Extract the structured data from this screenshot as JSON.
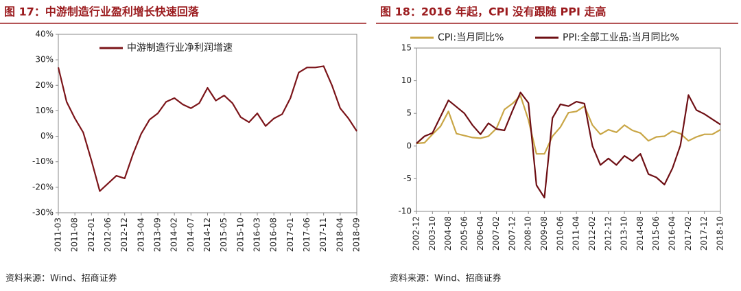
{
  "chart_data": [
    {
      "type": "line",
      "title": "图 17：中游制造行业盈利增长快速回落",
      "source": "资料来源：Wind、招商证券",
      "categories": [
        "2011-03",
        null,
        "2011-08",
        null,
        "2012-01",
        null,
        "2012-06",
        null,
        "2012-12",
        null,
        "2013-04",
        null,
        "2013-09",
        null,
        "2014-02",
        null,
        "2014-07",
        null,
        "2014-12",
        null,
        "2015-05",
        null,
        "2015-10",
        null,
        "2016-03",
        null,
        "2016-08",
        null,
        "2017-01",
        null,
        "2017-06",
        null,
        "2017-11",
        null,
        "2018-04",
        null,
        "2018-09"
      ],
      "series": [
        {
          "name": "中游制造行业净利润增速",
          "color": "#7b1419",
          "values": [
            27,
            13.5,
            7,
            1.5,
            -9.5,
            -21.5,
            -18.5,
            -15.5,
            -16.5,
            -7,
            1,
            6.5,
            9,
            13.5,
            15,
            12.5,
            11,
            13,
            19,
            14,
            16,
            13,
            7.5,
            5.5,
            9,
            4,
            7,
            8.7,
            15,
            25,
            27,
            27,
            27.5,
            20,
            11,
            7,
            2
          ]
        }
      ],
      "ylim": [
        -30,
        40
      ],
      "yticks": [
        {
          "value": -30,
          "label": "-30%"
        },
        {
          "value": -20,
          "label": "-20%"
        },
        {
          "value": -10,
          "label": "-10%"
        },
        {
          "value": 0,
          "label": "0%"
        },
        {
          "value": 10,
          "label": "10%"
        },
        {
          "value": 20,
          "label": "20%"
        },
        {
          "value": 30,
          "label": "30%"
        },
        {
          "value": 40,
          "label": "40%"
        }
      ]
    },
    {
      "type": "line",
      "title": "图 18：2016 年起，CPI 没有跟随 PPI 走高",
      "source": "资料来源：Wind、招商证券",
      "categories": [
        "2002-12",
        null,
        "2003-10",
        null,
        "2004-08",
        null,
        "2005-06",
        null,
        "2006-04",
        null,
        "2007-02",
        null,
        "2007-12",
        null,
        "2008-10",
        null,
        "2009-08",
        null,
        "2010-06",
        null,
        "2011-04",
        null,
        "2012-02",
        null,
        "2012-12",
        null,
        "2013-10",
        null,
        "2014-08",
        null,
        "2015-06",
        null,
        "2016-04",
        null,
        "2017-02",
        null,
        "2017-12",
        null,
        "2018-10"
      ],
      "series": [
        {
          "name": "CPI:当月同比%",
          "color": "#c9a646",
          "values": [
            0.4,
            0.5,
            1.8,
            3.0,
            5.3,
            1.9,
            1.6,
            1.3,
            1.2,
            1.5,
            2.7,
            5.6,
            6.5,
            7.7,
            4.0,
            -1.2,
            -1.2,
            1.5,
            2.9,
            5.1,
            5.3,
            6.1,
            3.2,
            1.8,
            2.5,
            2.1,
            3.2,
            2.4,
            2.0,
            0.8,
            1.4,
            1.5,
            2.3,
            1.9,
            0.8,
            1.4,
            1.8,
            1.8,
            2.5
          ]
        },
        {
          "name": "PPI:全部工业品:当月同比%",
          "color": "#6e0f14",
          "values": [
            0.4,
            1.5,
            2.0,
            4.5,
            7.0,
            6.0,
            5.0,
            3.2,
            1.8,
            3.5,
            2.6,
            2.4,
            5.4,
            8.2,
            6.6,
            -6.0,
            -7.9,
            4.3,
            6.4,
            6.1,
            6.8,
            6.5,
            0.0,
            -2.9,
            -1.9,
            -2.9,
            -1.5,
            -2.3,
            -1.2,
            -4.3,
            -4.8,
            -5.9,
            -3.4,
            0.1,
            7.8,
            5.5,
            4.9,
            4.1,
            3.3
          ]
        }
      ],
      "ylim": [
        -10,
        15
      ],
      "yticks": [
        -10,
        -5,
        0,
        5,
        10,
        15
      ]
    }
  ]
}
